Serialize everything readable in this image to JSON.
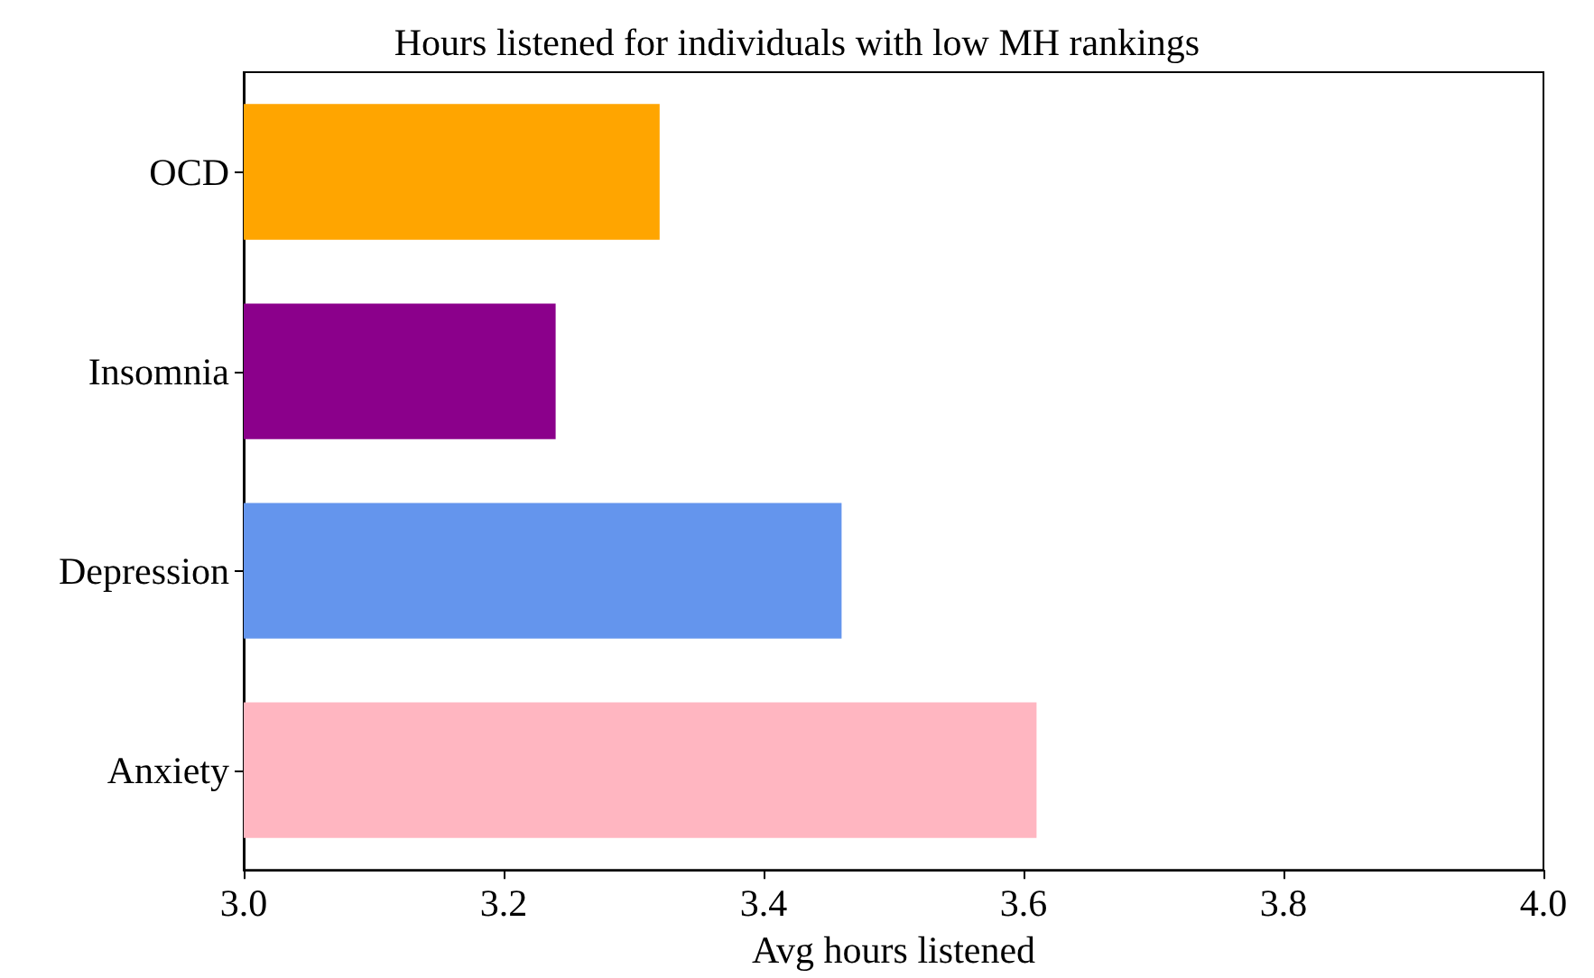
{
  "chart_data": {
    "type": "bar",
    "orientation": "horizontal",
    "title": "Hours listened for individuals with low MH rankings",
    "xlabel": "Avg hours listened",
    "categories": [
      "OCD",
      "Insomnia",
      "Depression",
      "Anxiety"
    ],
    "values": [
      3.32,
      3.24,
      3.46,
      3.61
    ],
    "colors": [
      "#ffa500",
      "#8b008b",
      "#6495ed",
      "#ffb6c1"
    ],
    "xlim": [
      3.0,
      4.0
    ],
    "xticks": [
      {
        "value": 3,
        "label": "3.0"
      },
      {
        "value": 3.2,
        "label": "3.2"
      },
      {
        "value": 3.4,
        "label": "3.4"
      },
      {
        "value": 3.6,
        "label": "3.6"
      },
      {
        "value": 3.8,
        "label": "3.8"
      },
      {
        "value": 4,
        "label": "4.0"
      }
    ],
    "grid": false
  }
}
